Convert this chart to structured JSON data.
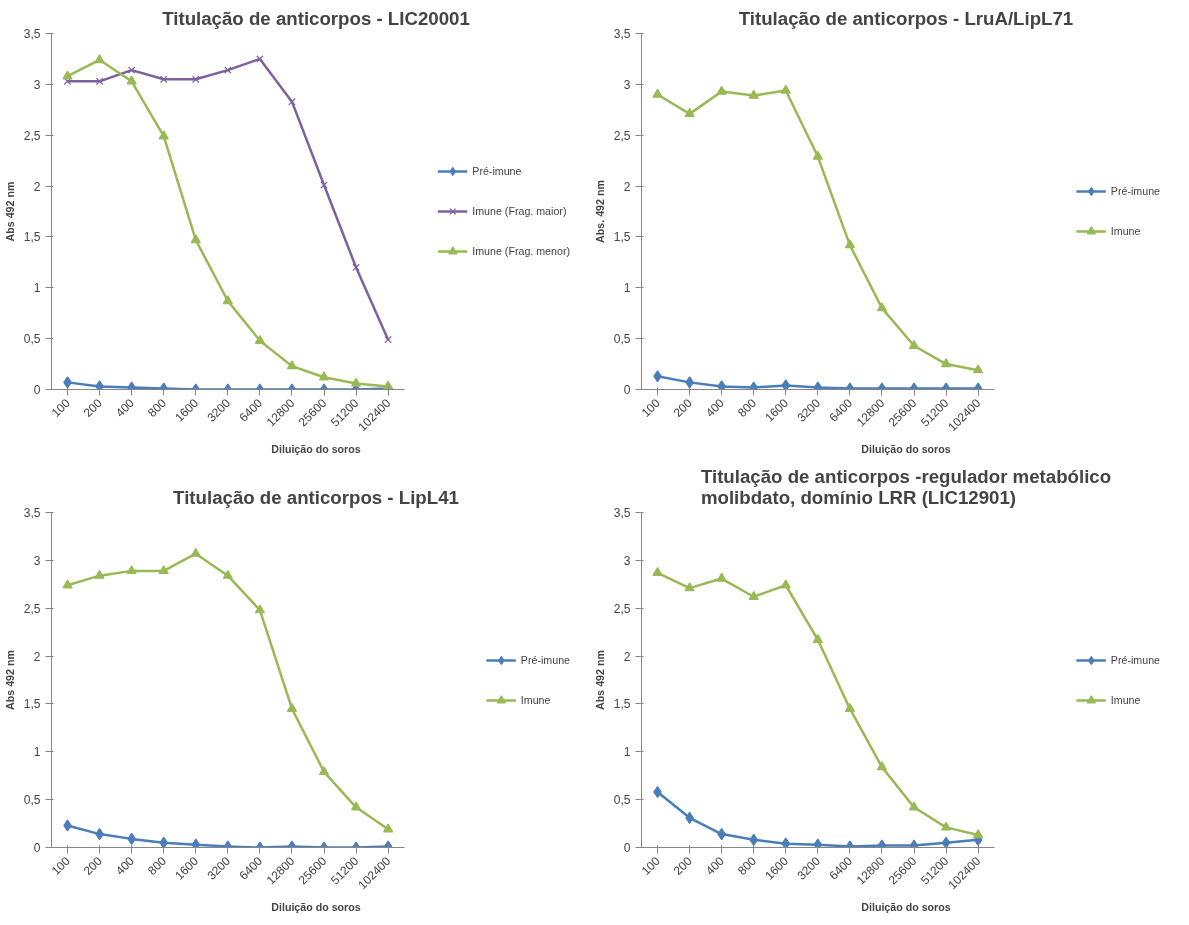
{
  "chart_data": [
    {
      "type": "line",
      "title": "Titulação de anticorpos - LIC20001",
      "xlabel": "Diluição do soros",
      "ylabel": "Abs 492 nm",
      "categories": [
        "100",
        "200",
        "400",
        "800",
        "1600",
        "3200",
        "6400",
        "12800",
        "25600",
        "51200",
        "102400"
      ],
      "ylim": [
        0,
        3.5
      ],
      "yticks": [
        0,
        {
          "value": 0.5,
          "label": "0,5"
        },
        1,
        {
          "value": 1.5,
          "label": "1,5"
        },
        2,
        {
          "value": 2.5,
          "label": "2,5"
        },
        3,
        {
          "value": 3.5,
          "label": "3,5"
        }
      ],
      "grid": false,
      "legend": "right",
      "series": [
        {
          "name": "Pré-imune",
          "color": "#4a7ebb",
          "marker": "diamond",
          "values": [
            0.07,
            0.03,
            0.02,
            0.01,
            0.0,
            0.0,
            0.0,
            0.0,
            0.0,
            0.0,
            0.01
          ]
        },
        {
          "name": "Imune (Frag. maior)",
          "color": "#7d60a0",
          "marker": "cross",
          "values": [
            3.03,
            3.03,
            3.14,
            3.05,
            3.05,
            3.14,
            3.25,
            2.83,
            2.01,
            1.2,
            0.49
          ]
        },
        {
          "name": "Imune (Frag. menor)",
          "color": "#98b954",
          "marker": "triangle",
          "values": [
            3.08,
            3.24,
            3.03,
            2.49,
            1.47,
            0.87,
            0.48,
            0.23,
            0.12,
            0.06,
            0.03
          ]
        }
      ]
    },
    {
      "type": "line",
      "title": "Titulação de anticorpos - LruA/LipL71",
      "xlabel": "Diluição do soros",
      "ylabel": "Abs. 492 nm",
      "categories": [
        "100",
        "200",
        "400",
        "800",
        "1600",
        "3200",
        "6400",
        "12800",
        "25600",
        "51200",
        "102400"
      ],
      "ylim": [
        0,
        3.5
      ],
      "yticks": [
        0,
        {
          "value": 0.5,
          "label": "0,5"
        },
        1,
        {
          "value": 1.5,
          "label": "1,5"
        },
        2,
        {
          "value": 2.5,
          "label": "2,5"
        },
        3,
        {
          "value": 3.5,
          "label": "3,5"
        }
      ],
      "grid": false,
      "legend": "right",
      "series": [
        {
          "name": "Pré-imune",
          "color": "#4a7ebb",
          "marker": "diamond",
          "values": [
            0.13,
            0.07,
            0.03,
            0.02,
            0.04,
            0.02,
            0.01,
            0.01,
            0.01,
            0.01,
            0.01
          ]
        },
        {
          "name": "Imune",
          "color": "#98b954",
          "marker": "triangle",
          "values": [
            2.9,
            2.71,
            2.93,
            2.89,
            2.94,
            2.29,
            1.42,
            0.8,
            0.43,
            0.25,
            0.19
          ]
        }
      ]
    },
    {
      "type": "line",
      "title": "Titulação de anticorpos - LipL41",
      "xlabel": "Diluição do soros",
      "ylabel": "Abs 492 nm",
      "categories": [
        "100",
        "200",
        "400",
        "800",
        "1600",
        "3200",
        "6400",
        "12800",
        "25600",
        "51200",
        "102400"
      ],
      "ylim": [
        0,
        3.5
      ],
      "yticks": [
        0,
        {
          "value": 0.5,
          "label": "0,5"
        },
        1,
        {
          "value": 1.5,
          "label": "1,5"
        },
        2,
        {
          "value": 2.5,
          "label": "2,5"
        },
        3,
        {
          "value": 3.5,
          "label": "3,5"
        }
      ],
      "grid": false,
      "legend": "right",
      "series": [
        {
          "name": "Pré-imune",
          "color": "#4a7ebb",
          "marker": "diamond",
          "values": [
            0.23,
            0.14,
            0.09,
            0.05,
            0.03,
            0.01,
            0.0,
            0.01,
            0.0,
            0.0,
            0.01
          ]
        },
        {
          "name": "Imune",
          "color": "#98b954",
          "marker": "triangle",
          "values": [
            2.74,
            2.84,
            2.89,
            2.89,
            3.07,
            2.84,
            2.48,
            1.45,
            0.79,
            0.42,
            0.19
          ]
        }
      ]
    },
    {
      "type": "line",
      "title": "Titulação de anticorpos -regulador metabólico\nmolibdato, domínio LRR (LIC12901)",
      "xlabel": "Diluição do soros",
      "ylabel": "Abs 492 nm",
      "categories": [
        "100",
        "200",
        "400",
        "800",
        "1600",
        "3200",
        "6400",
        "12800",
        "25600",
        "51200",
        "102400"
      ],
      "ylim": [
        0,
        3.5
      ],
      "yticks": [
        0,
        {
          "value": 0.5,
          "label": "0,5"
        },
        1,
        {
          "value": 1.5,
          "label": "1,5"
        },
        2,
        {
          "value": 2.5,
          "label": "2,5"
        },
        3,
        {
          "value": 3.5,
          "label": "3,5"
        }
      ],
      "grid": false,
      "legend": "right",
      "series": [
        {
          "name": "Pré-imune",
          "color": "#4a7ebb",
          "marker": "diamond",
          "values": [
            0.58,
            0.31,
            0.14,
            0.08,
            0.04,
            0.03,
            0.01,
            0.02,
            0.02,
            0.05,
            0.08
          ]
        },
        {
          "name": "Imune",
          "color": "#98b954",
          "marker": "triangle",
          "values": [
            2.87,
            2.71,
            2.81,
            2.62,
            2.74,
            2.17,
            1.45,
            0.84,
            0.42,
            0.21,
            0.13
          ]
        }
      ]
    }
  ]
}
